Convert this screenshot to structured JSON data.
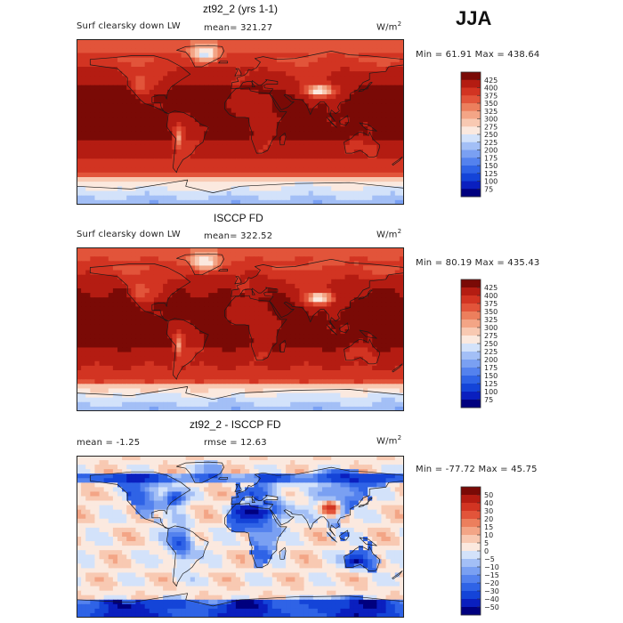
{
  "season": "JJA",
  "panels": [
    {
      "id": "model",
      "title": "zt92_2 (yrs 1-1)",
      "variable": "Surf clearsky down LW",
      "stat_left": "",
      "stat_mid": "mean= 321.27",
      "units_base": "W/m",
      "units_exp": "2",
      "minmax": "Min =  61.91 Max = 438.64"
    },
    {
      "id": "obs",
      "title": "ISCCP FD",
      "variable": "Surf clearsky down LW",
      "stat_left": "",
      "stat_mid": "mean= 322.52",
      "units_base": "W/m",
      "units_exp": "2",
      "minmax": "Min =  80.19 Max = 435.43"
    },
    {
      "id": "diff",
      "title": "zt92_2 - ISCCP FD",
      "variable": "",
      "stat_left": "mean =  -1.25",
      "stat_mid": "rmse =  12.63",
      "units_base": "W/m",
      "units_exp": "2",
      "minmax": "Min = -77.72 Max =  45.75"
    }
  ],
  "chart_data": [
    {
      "type": "heatmap",
      "title": "zt92_2 (yrs 1-1)",
      "subtitle": "Surf clearsky down LW",
      "mean": 321.27,
      "min": 61.91,
      "max": 438.64,
      "levels": [
        75,
        100,
        125,
        150,
        175,
        200,
        225,
        250,
        275,
        300,
        325,
        350,
        375,
        400,
        425
      ],
      "colors": [
        "#00007f",
        "#0a1fbf",
        "#1444d8",
        "#2f63e6",
        "#5482ee",
        "#7aa0f2",
        "#a3bff6",
        "#d3e2fa",
        "#fbe9df",
        "#f8c9b2",
        "#f3a586",
        "#ec7f5d",
        "#e2543a",
        "#d23422",
        "#b41c12",
        "#7a0a06"
      ],
      "colorbar_labels": [
        "425",
        "400",
        "375",
        "350",
        "325",
        "300",
        "275",
        "250",
        "225",
        "200",
        "175",
        "150",
        "125",
        "100",
        "75"
      ]
    },
    {
      "type": "heatmap",
      "title": "ISCCP FD",
      "subtitle": "Surf clearsky down LW",
      "mean": 322.52,
      "min": 80.19,
      "max": 435.43,
      "levels": [
        75,
        100,
        125,
        150,
        175,
        200,
        225,
        250,
        275,
        300,
        325,
        350,
        375,
        400,
        425
      ],
      "colors": [
        "#00007f",
        "#0a1fbf",
        "#1444d8",
        "#2f63e6",
        "#5482ee",
        "#7aa0f2",
        "#a3bff6",
        "#d3e2fa",
        "#fbe9df",
        "#f8c9b2",
        "#f3a586",
        "#ec7f5d",
        "#e2543a",
        "#d23422",
        "#b41c12",
        "#7a0a06"
      ],
      "colorbar_labels": [
        "425",
        "400",
        "375",
        "350",
        "325",
        "300",
        "275",
        "250",
        "225",
        "200",
        "175",
        "150",
        "125",
        "100",
        "75"
      ]
    },
    {
      "type": "heatmap",
      "title": "zt92_2 - ISCCP FD",
      "mean": -1.25,
      "rmse": 12.63,
      "min": -77.72,
      "max": 45.75,
      "levels": [
        -50,
        -40,
        -30,
        -20,
        -15,
        -10,
        -5,
        0,
        5,
        10,
        15,
        20,
        30,
        40,
        50
      ],
      "colors": [
        "#00007f",
        "#0a1fbf",
        "#1444d8",
        "#2f63e6",
        "#5482ee",
        "#7aa0f2",
        "#a3bff6",
        "#d3e2fa",
        "#fbe9df",
        "#f8c9b2",
        "#f3a586",
        "#ec7f5d",
        "#e2543a",
        "#d23422",
        "#b41c12",
        "#7a0a06"
      ],
      "colorbar_labels": [
        "50",
        "40",
        "30",
        "20",
        "15",
        "10",
        "5",
        "0",
        "−5",
        "−10",
        "−15",
        "−20",
        "−30",
        "−40",
        "−50"
      ]
    }
  ]
}
